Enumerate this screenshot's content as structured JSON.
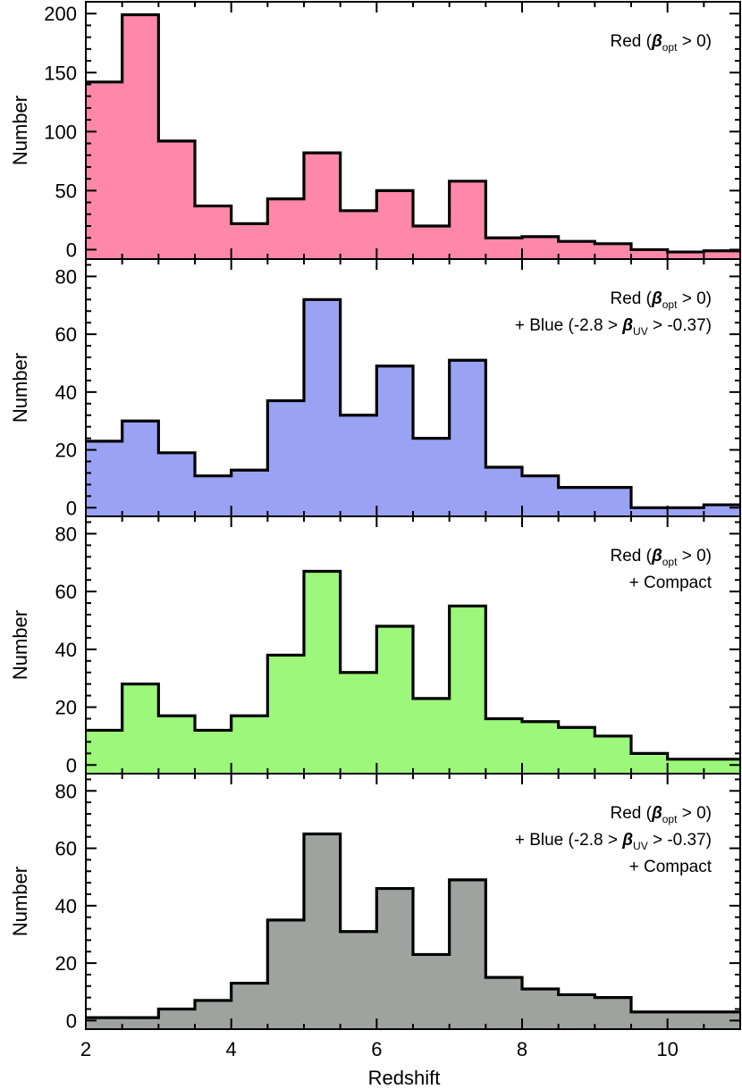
{
  "chart_data": [
    {
      "type": "histogram",
      "color": "#ff88aa",
      "bin_edges": [
        2.0,
        2.5,
        3.0,
        3.5,
        4.0,
        4.5,
        5.0,
        5.5,
        6.0,
        6.5,
        7.0,
        7.5,
        8.0,
        8.5,
        9.0,
        9.5,
        10.0,
        10.5,
        11.0
      ],
      "values": [
        142,
        199,
        92,
        37,
        22,
        43,
        82,
        33,
        50,
        20,
        58,
        10,
        11,
        7,
        5,
        0,
        -2,
        -1
      ],
      "ylim": [
        -8,
        210
      ],
      "yticks": [
        0,
        50,
        100,
        150,
        200
      ],
      "ylabel": "Number",
      "legend": [
        {
          "main": "Red (",
          "beta": "β",
          "sub": "opt",
          "rest": " > 0)"
        }
      ]
    },
    {
      "type": "histogram",
      "color": "#9aa2f4",
      "bin_edges": [
        2.0,
        2.5,
        3.0,
        3.5,
        4.0,
        4.5,
        5.0,
        5.5,
        6.0,
        6.5,
        7.0,
        7.5,
        8.0,
        8.5,
        9.0,
        9.5,
        10.0,
        10.5,
        11.0
      ],
      "values": [
        23,
        30,
        19,
        11,
        13,
        37,
        72,
        32,
        49,
        24,
        51,
        14,
        11,
        7,
        7,
        0,
        0,
        1
      ],
      "ylim": [
        -3,
        86
      ],
      "yticks": [
        0,
        20,
        40,
        60,
        80
      ],
      "ylabel": "Number",
      "legend": [
        {
          "main": "Red (",
          "beta": "β",
          "sub": "opt",
          "rest": " > 0)"
        },
        {
          "main": "+ Blue (-2.8 > ",
          "beta": "β",
          "sub": "UV",
          "rest": " > -0.37)"
        }
      ]
    },
    {
      "type": "histogram",
      "color": "#9cf77a",
      "bin_edges": [
        2.0,
        2.5,
        3.0,
        3.5,
        4.0,
        4.5,
        5.0,
        5.5,
        6.0,
        6.5,
        7.0,
        7.5,
        8.0,
        8.5,
        9.0,
        9.5,
        10.0,
        10.5,
        11.0
      ],
      "values": [
        12,
        28,
        17,
        12,
        17,
        38,
        67,
        32,
        48,
        23,
        55,
        16,
        15,
        13,
        10,
        4,
        2,
        2
      ],
      "ylim": [
        -3,
        86
      ],
      "yticks": [
        0,
        20,
        40,
        60,
        80
      ],
      "ylabel": "Number",
      "legend": [
        {
          "main": "Red (",
          "beta": "β",
          "sub": "opt",
          "rest": " > 0)"
        },
        {
          "main": "+ Compact",
          "beta": "",
          "sub": "",
          "rest": ""
        }
      ]
    },
    {
      "type": "histogram",
      "color": "#9ea3a0",
      "bin_edges": [
        2.0,
        2.5,
        3.0,
        3.5,
        4.0,
        4.5,
        5.0,
        5.5,
        6.0,
        6.5,
        7.0,
        7.5,
        8.0,
        8.5,
        9.0,
        9.5,
        10.0,
        10.5,
        11.0
      ],
      "values": [
        1,
        1,
        4,
        7,
        13,
        35,
        65,
        31,
        46,
        23,
        49,
        15,
        11,
        9,
        8,
        3,
        3,
        3
      ],
      "ylim": [
        -3,
        86
      ],
      "yticks": [
        0,
        20,
        40,
        60,
        80
      ],
      "ylabel": "Number",
      "legend": [
        {
          "main": "Red (",
          "beta": "β",
          "sub": "opt",
          "rest": " > 0)"
        },
        {
          "main": "+ Blue (-2.8 > ",
          "beta": "β",
          "sub": "UV",
          "rest": " > -0.37)"
        },
        {
          "main": "+ Compact",
          "beta": "",
          "sub": "",
          "rest": ""
        }
      ]
    }
  ],
  "xaxis": {
    "xlim": [
      2,
      11
    ],
    "xticks": [
      2,
      4,
      6,
      8,
      10
    ],
    "xlabel": "Redshift"
  }
}
